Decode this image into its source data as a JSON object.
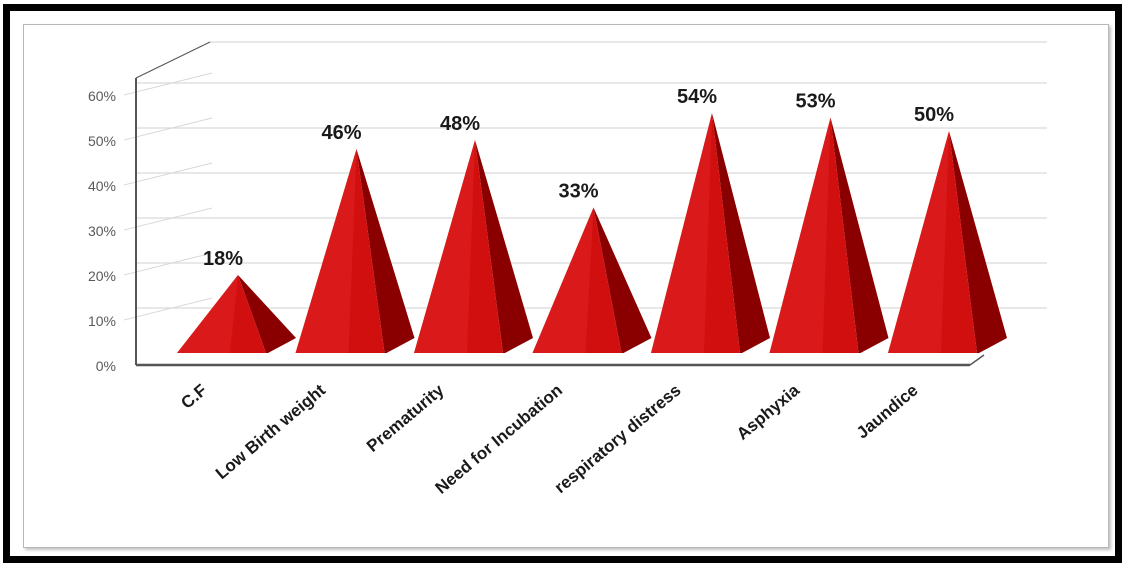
{
  "chart_data": {
    "type": "bar",
    "style": "3d-pyramid",
    "categories": [
      "C.F",
      "Low Birth weight",
      "Prematurity",
      "Need for Incubation",
      "respiratory distress",
      "Asphyxia",
      "Jaundice"
    ],
    "values": [
      18,
      46,
      48,
      33,
      54,
      53,
      50
    ],
    "data_labels": [
      "18%",
      "46%",
      "48%",
      "33%",
      "54%",
      "53%",
      "50%"
    ],
    "yticks": [
      "0%",
      "10%",
      "20%",
      "30%",
      "40%",
      "50%",
      "60%"
    ],
    "ylim": [
      0,
      60
    ],
    "grid": true,
    "legend": "none",
    "colors": {
      "front": "#d10f0f",
      "side": "#8a0000",
      "highlight": "#e22424",
      "grid": "#d9d9d9",
      "axis": "#555555"
    }
  }
}
